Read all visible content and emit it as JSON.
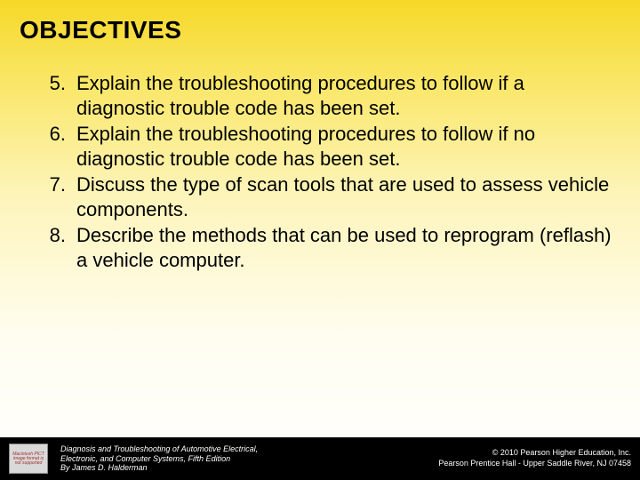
{
  "slide": {
    "title": "OBJECTIVES",
    "title_fontsize": 28,
    "title_color": "#000000",
    "body_fontsize": 22,
    "body_color": "#000000",
    "background_gradient": [
      "#f6d827",
      "#fae76a",
      "#fdf4b8",
      "#fffdf0",
      "#ffffff"
    ],
    "list_start": 5,
    "items": [
      {
        "num": "5.",
        "text": "Explain the troubleshooting procedures to follow if a diagnostic trouble code has been set."
      },
      {
        "num": "6.",
        "text": "Explain the troubleshooting procedures to follow if no diagnostic trouble code has been set."
      },
      {
        "num": "7.",
        "text": "Discuss the type of scan tools that are used to assess vehicle components."
      },
      {
        "num": "8.",
        "text": "Describe the methods that can be used to reprogram (reflash) a vehicle computer."
      }
    ]
  },
  "footer": {
    "background_color": "#000000",
    "text_color": "#ffffff",
    "fontsize": 9,
    "icon_placeholder": "Macintosh PICT image format is not supported",
    "left_line1": "Diagnosis and Troubleshooting of Automotive Electrical,",
    "left_line2": "Electronic, and Computer Systems, Fifth Edition",
    "left_line3": "By James D. Halderman",
    "right_line1": "© 2010 Pearson Higher Education, Inc.",
    "right_line2": "Pearson Prentice Hall - Upper Saddle River, NJ 07458"
  }
}
